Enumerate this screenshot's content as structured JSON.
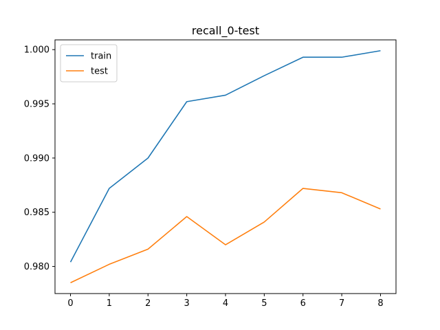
{
  "chart_data": {
    "type": "line",
    "title": "recall_0-test",
    "xlabel": "",
    "ylabel": "",
    "x": [
      0,
      1,
      2,
      3,
      4,
      5,
      6,
      7,
      8
    ],
    "xticks": [
      0,
      1,
      2,
      3,
      4,
      5,
      6,
      7,
      8
    ],
    "yticks": [
      "0.980",
      "0.985",
      "0.990",
      "0.995",
      "1.000"
    ],
    "xlim": [
      -0.4,
      8.4
    ],
    "ylim": [
      0.9775,
      1.0009
    ],
    "grid": false,
    "legend_position": "upper-left",
    "series": [
      {
        "name": "train",
        "color": "#1f77b4",
        "values": [
          0.9804,
          0.9872,
          0.99,
          0.9952,
          0.9958,
          0.9976,
          0.9993,
          0.9993,
          0.9999
        ]
      },
      {
        "name": "test",
        "color": "#ff7f0e",
        "values": [
          0.9785,
          0.9802,
          0.9816,
          0.9846,
          0.982,
          0.9841,
          0.9872,
          0.9868,
          0.9853
        ]
      }
    ]
  }
}
